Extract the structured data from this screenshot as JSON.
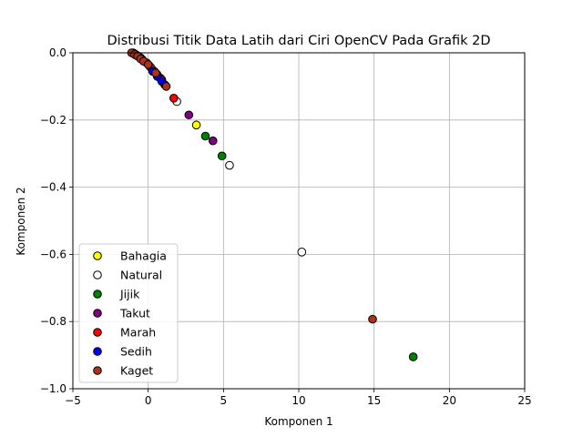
{
  "chart_data": {
    "type": "scatter",
    "title": "Distribusi Titik Data Latih dari Ciri OpenCV Pada Grafik 2D",
    "xlabel": "Komponen 1",
    "ylabel": "Komponen 2",
    "xlim": [
      -5,
      25
    ],
    "ylim": [
      -1.0,
      0.0
    ],
    "xticks": [
      -5,
      0,
      5,
      10,
      15,
      20,
      25
    ],
    "yticks": [
      0.0,
      -0.2,
      -0.4,
      -0.6,
      -0.8,
      -1.0
    ],
    "xtick_labels": [
      "−5",
      "0",
      "5",
      "10",
      "15",
      "20",
      "25"
    ],
    "ytick_labels": [
      "0.0",
      "−0.2",
      "−0.4",
      "−0.6",
      "−0.8",
      "−1.0"
    ],
    "grid": true,
    "legend_position": "lower-left",
    "series": [
      {
        "name": "Bahagia",
        "color": "#ffff00",
        "points": [
          [
            -0.9,
            -0.003
          ],
          [
            -0.5,
            -0.015
          ],
          [
            -0.1,
            -0.03
          ],
          [
            0.4,
            -0.055
          ],
          [
            3.2,
            -0.215
          ]
        ]
      },
      {
        "name": "Natural",
        "color": "#ffffff",
        "points": [
          [
            -1.0,
            0.0
          ],
          [
            -0.3,
            -0.025
          ],
          [
            0.6,
            -0.065
          ],
          [
            1.9,
            -0.145
          ],
          [
            5.4,
            -0.335
          ],
          [
            10.2,
            -0.593
          ]
        ]
      },
      {
        "name": "Jijik",
        "color": "#008000",
        "points": [
          [
            -0.8,
            -0.006
          ],
          [
            0.1,
            -0.04
          ],
          [
            3.8,
            -0.248
          ],
          [
            4.9,
            -0.307
          ],
          [
            17.6,
            -0.905
          ]
        ]
      },
      {
        "name": "Takut",
        "color": "#800080",
        "points": [
          [
            -0.6,
            -0.012
          ],
          [
            0.8,
            -0.075
          ],
          [
            2.7,
            -0.185
          ],
          [
            4.3,
            -0.262
          ]
        ]
      },
      {
        "name": "Marah",
        "color": "#ff0000",
        "points": [
          [
            -0.7,
            -0.009
          ],
          [
            0.2,
            -0.045
          ],
          [
            0.9,
            -0.08
          ],
          [
            1.7,
            -0.135
          ]
        ]
      },
      {
        "name": "Sedih",
        "color": "#0000ff",
        "points": [
          [
            -0.4,
            -0.02
          ],
          [
            0.3,
            -0.055
          ],
          [
            0.6,
            -0.07
          ],
          [
            0.9,
            -0.085
          ],
          [
            1.1,
            -0.095
          ]
        ]
      },
      {
        "name": "Kaget",
        "color": "#b03020",
        "points": [
          [
            -1.1,
            0.0
          ],
          [
            -0.9,
            -0.005
          ],
          [
            -0.7,
            -0.01
          ],
          [
            -0.5,
            -0.018
          ],
          [
            -0.3,
            -0.025
          ],
          [
            0.0,
            -0.035
          ],
          [
            0.5,
            -0.06
          ],
          [
            1.2,
            -0.1
          ],
          [
            14.9,
            -0.793
          ]
        ]
      }
    ]
  }
}
